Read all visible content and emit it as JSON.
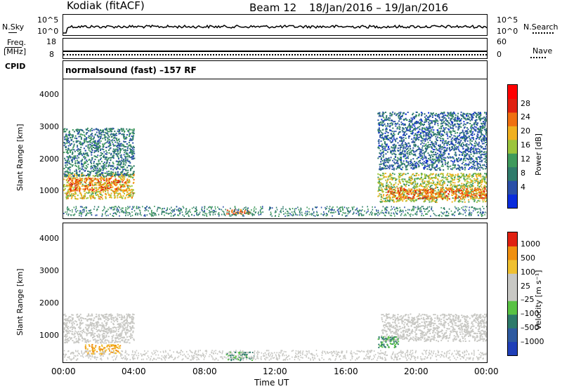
{
  "header": {
    "station": "Kodiak  (fitACF)",
    "beam": "Beam 12",
    "dates": "18/Jan/2016 – 19/Jan/2016"
  },
  "mini_panels": {
    "nsky_label": "N.Sky",
    "nsearch_label": "N.Search",
    "noise_left_ticks": [
      "10^5",
      "10^0"
    ],
    "noise_right_ticks": [
      "10^5",
      "10^0"
    ],
    "freq_label_1": "Freq.",
    "freq_label_2": "[MHz]",
    "freq_ticks": [
      "18",
      "8"
    ],
    "nave_label": "Nave",
    "nave_ticks": [
      "60",
      "0"
    ],
    "cpid_label": "CPID",
    "cpid_text": "normalsound (fast)  –157  RF"
  },
  "chart_data": [
    {
      "type": "heatmap",
      "name": "power",
      "ylabel": "Slant Range [km]",
      "xlabel": "",
      "ylim": [
        180,
        4500
      ],
      "yticks": [
        "4000",
        "3000",
        "2000",
        "1000"
      ],
      "colorbar": {
        "label": "Power [dB]",
        "ticks": [
          "28",
          "24",
          "20",
          "16",
          "12",
          "8",
          "4"
        ],
        "colors": [
          "#0a2cdc",
          "#2a4fa8",
          "#2f7b6b",
          "#3f9a5c",
          "#9cc43c",
          "#f0b020",
          "#f07010",
          "#e02010",
          "#ff0000"
        ]
      },
      "regions": [
        {
          "t0": 0.0,
          "t1": 4.0,
          "r0": 800,
          "r1": 1600,
          "value": 20
        },
        {
          "t0": 0.2,
          "t1": 3.6,
          "r0": 1050,
          "r1": 1450,
          "value": 26
        },
        {
          "t0": 0.0,
          "t1": 4.0,
          "r0": 1500,
          "r1": 3000,
          "value": 10
        },
        {
          "t0": 9.2,
          "t1": 10.6,
          "r0": 320,
          "r1": 480,
          "value": 27
        },
        {
          "t0": 17.8,
          "t1": 24.0,
          "r0": 700,
          "r1": 1600,
          "value": 18
        },
        {
          "t0": 18.2,
          "t1": 24.0,
          "r0": 800,
          "r1": 1150,
          "value": 26
        },
        {
          "t0": 17.8,
          "t1": 24.0,
          "r0": 1700,
          "r1": 3500,
          "value": 8
        }
      ]
    },
    {
      "type": "heatmap",
      "name": "velocity",
      "ylabel": "Slant Range [km]",
      "xlabel": "Time UT",
      "ylim": [
        180,
        4500
      ],
      "yticks": [
        "4000",
        "3000",
        "2000",
        "1000"
      ],
      "xticks": [
        "00:00",
        "04:00",
        "08:00",
        "12:00",
        "16:00",
        "20:00",
        "00:00"
      ],
      "xlim_hours": [
        0,
        24
      ],
      "colorbar": {
        "label": "Velocity [m s⁻¹]",
        "ticks": [
          "1000",
          "500",
          "100",
          "25",
          "–25",
          "–100",
          "–500",
          "–1000"
        ],
        "colors": [
          "#1f3fb8",
          "#2e5aa0",
          "#2d7a6a",
          "#59c244",
          "#c8c8c4",
          "#c8c8c4",
          "#f0c030",
          "#f09010",
          "#e02010"
        ]
      },
      "regions": [
        {
          "t0": 0.0,
          "t1": 4.0,
          "r0": 800,
          "r1": 1700,
          "value": 0
        },
        {
          "t0": 1.2,
          "t1": 3.2,
          "r0": 450,
          "r1": 750,
          "value": -100
        },
        {
          "t0": 9.2,
          "t1": 10.8,
          "r0": 250,
          "r1": 520,
          "value": 120
        },
        {
          "t0": 18.0,
          "t1": 24.0,
          "r0": 850,
          "r1": 1700,
          "value": 0
        },
        {
          "t0": 17.8,
          "t1": 19.0,
          "r0": 650,
          "r1": 1000,
          "value": 120
        }
      ]
    }
  ]
}
